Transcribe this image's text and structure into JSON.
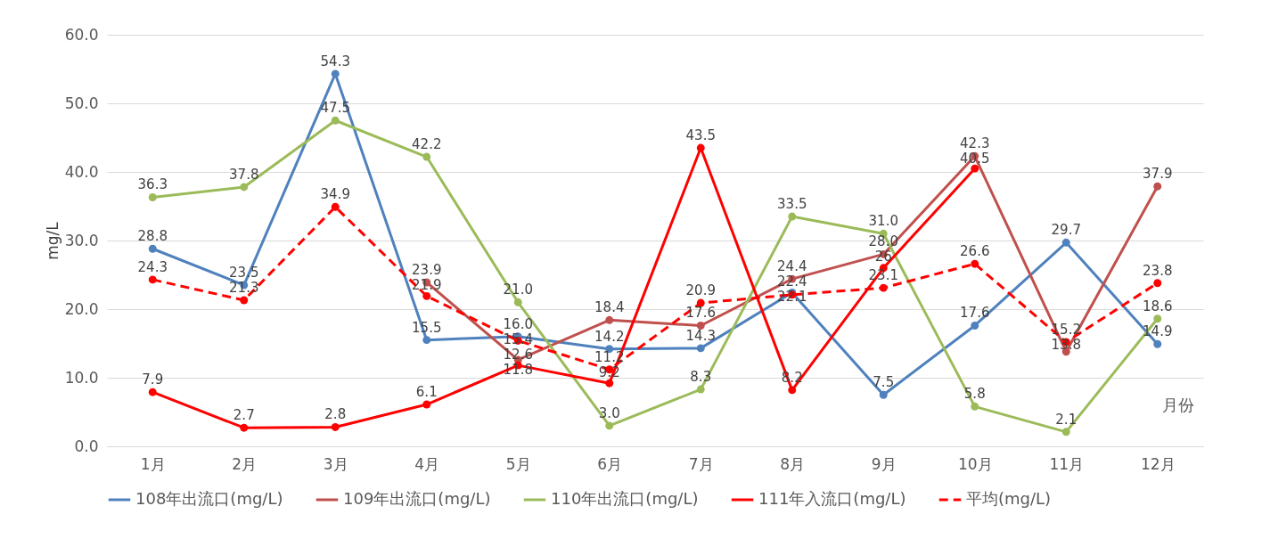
{
  "chart_data": {
    "type": "line",
    "ylabel": "mg/L",
    "categories": [
      "1月",
      "2月",
      "3月",
      "4月",
      "5月",
      "6月",
      "7月",
      "8月",
      "9月",
      "10月",
      "11月",
      "12月"
    ],
    "ylim": [
      0,
      60
    ],
    "yticks": [
      {
        "value": 0,
        "label": "0.0"
      },
      {
        "value": 10,
        "label": "10.0"
      },
      {
        "value": 20,
        "label": "20.0"
      },
      {
        "value": 30,
        "label": "30.0"
      },
      {
        "value": 40,
        "label": "40.0"
      },
      {
        "value": 50,
        "label": "50.0"
      },
      {
        "value": 60,
        "label": "60.0"
      }
    ],
    "grid": "y",
    "legend": "bottom",
    "marker": "circle",
    "annotations": [
      "月份"
    ],
    "series": [
      {
        "name": "108年出流口(mg/L)",
        "color": "#4f81bd",
        "values": [
          28.8,
          23.5,
          54.3,
          15.5,
          16.0,
          14.2,
          14.3,
          22.4,
          7.5,
          17.6,
          29.7,
          14.9
        ],
        "value_labels": [
          "28.8",
          "23.5",
          "54.3",
          "15.5",
          "16.0",
          "14.2",
          "14.3",
          "22.4",
          "7.5",
          "17.6",
          "29.7",
          "14.9"
        ]
      },
      {
        "name": "109年出流口(mg/L)",
        "color": "#c0504d",
        "values": [
          null,
          null,
          null,
          23.9,
          12.6,
          18.4,
          17.6,
          24.4,
          28.0,
          42.3,
          13.8,
          37.9
        ],
        "value_labels": [
          null,
          null,
          null,
          "23.9",
          "12.6",
          "18.4",
          "17.6",
          "24.4",
          "28.0",
          "42.3",
          "13.8",
          "37.9"
        ]
      },
      {
        "name": "110年出流口(mg/L)",
        "color": "#9bbb59",
        "values": [
          36.3,
          37.8,
          47.5,
          42.2,
          21.0,
          3.0,
          8.3,
          33.5,
          31.0,
          5.8,
          2.1,
          18.6
        ],
        "value_labels": [
          "36.3",
          "37.8",
          "47.5",
          "42.2",
          "21.0",
          "3.0",
          "8.3",
          "33.5",
          "31.0",
          "5.8",
          "2.1",
          "18.6"
        ]
      },
      {
        "name": "111年入流口(mg/L)",
        "color": "#ff0000",
        "values": [
          7.9,
          2.7,
          2.8,
          6.1,
          11.8,
          9.2,
          43.5,
          8.2,
          26,
          40.5,
          null,
          null
        ],
        "value_labels": [
          "7.9",
          "2.7",
          "2.8",
          "6.1",
          "11.8",
          "9.2",
          "43.5",
          "8.2",
          "26",
          "40.5",
          null,
          null
        ]
      },
      {
        "name": "平均(mg/L)",
        "color": "#ff0000",
        "line_style": "dashed",
        "values": [
          24.3,
          21.3,
          34.9,
          21.9,
          15.4,
          11.2,
          20.9,
          22.1,
          23.1,
          26.6,
          15.2,
          23.8
        ],
        "value_labels": [
          "24.3",
          "21.3",
          "34.9",
          "21.9",
          "15.4",
          "11.2",
          "20.9",
          "22.1",
          "23.1",
          "26.6",
          "15.2",
          "23.8"
        ]
      }
    ]
  }
}
